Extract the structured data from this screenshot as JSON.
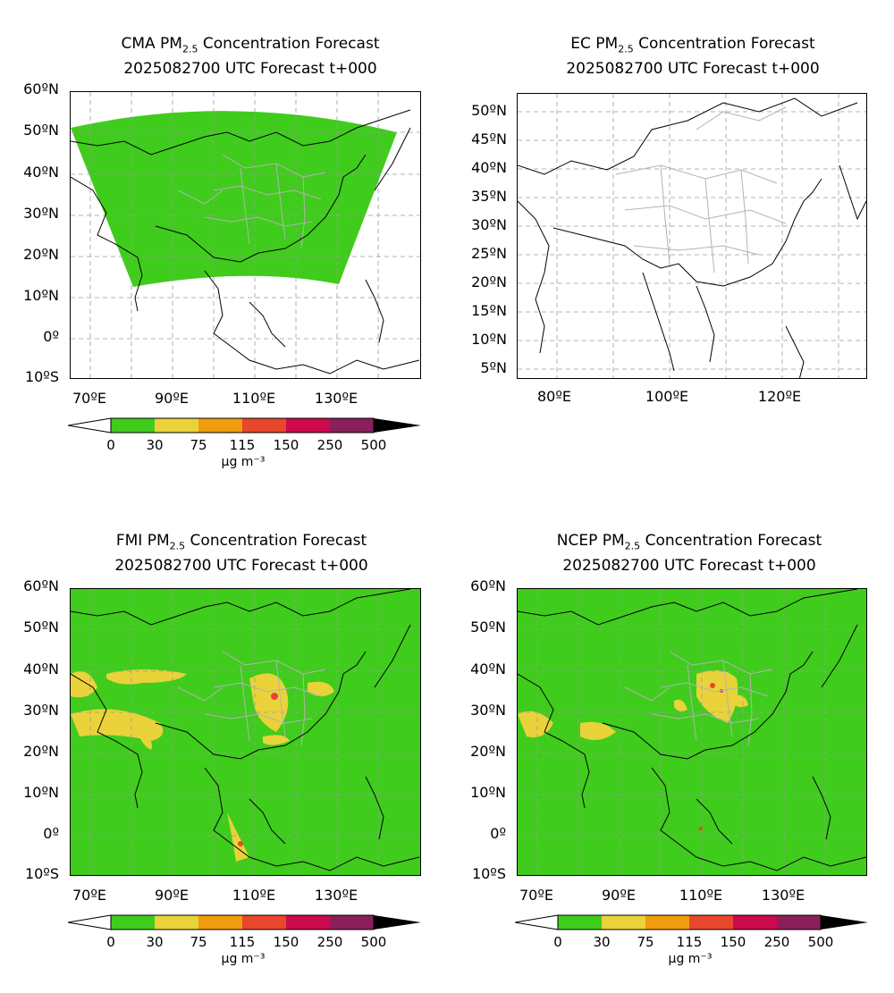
{
  "panels": [
    {
      "key": "cma",
      "model": "CMA",
      "title_prefix": "CMA PM",
      "title_sub": "2.5",
      "title_suffix": " Concentration Forecast",
      "title_line2": "2025082700 UTC Forecast t+000",
      "lat_labels": [
        "60ºN",
        "50ºN",
        "40ºN",
        "30ºN",
        "20ºN",
        "10ºN",
        "0º",
        "10ºS"
      ],
      "lon_labels": [
        "70ºE",
        "90ºE",
        "110ºE",
        "130ºE"
      ],
      "extent": {
        "lon": [
          65,
          150
        ],
        "lat": [
          -10,
          60
        ]
      },
      "field": "partial-fan",
      "has_colorbar": true
    },
    {
      "key": "ec",
      "model": "EC",
      "title_prefix": "EC PM",
      "title_sub": "2.5",
      "title_suffix": " Concentration Forecast",
      "title_line2": "2025082700 UTC Forecast t+000",
      "lat_labels": [
        "50ºN",
        "45ºN",
        "40ºN",
        "35ºN",
        "30ºN",
        "25ºN",
        "20ºN",
        "15ºN",
        "10ºN",
        "5ºN"
      ],
      "lon_labels": [
        "80ºE",
        "100ºE",
        "120ºE"
      ],
      "extent": {
        "lon": [
          73,
          135
        ],
        "lat": [
          3,
          54
        ]
      },
      "field": "none",
      "has_colorbar": false
    },
    {
      "key": "fmi",
      "model": "FMI",
      "title_prefix": "FMI PM",
      "title_sub": "2.5",
      "title_suffix": " Concentration Forecast",
      "title_line2": "2025082700 UTC Forecast t+000",
      "lat_labels": [
        "60ºN",
        "50ºN",
        "40ºN",
        "30ºN",
        "20ºN",
        "10ºN",
        "0º",
        "10ºS"
      ],
      "lon_labels": [
        "70ºE",
        "90ºE",
        "110ºE",
        "130ºE"
      ],
      "extent": {
        "lon": [
          65,
          150
        ],
        "lat": [
          -10,
          60
        ]
      },
      "field": "full",
      "has_colorbar": true
    },
    {
      "key": "ncep",
      "model": "NCEP",
      "title_prefix": "NCEP PM",
      "title_sub": "2.5",
      "title_suffix": " Concentration Forecast",
      "title_line2": "2025082700 UTC Forecast t+000",
      "lat_labels": [
        "60ºN",
        "50ºN",
        "40ºN",
        "30ºN",
        "20ºN",
        "10ºN",
        "0º",
        "10ºS"
      ],
      "lon_labels": [
        "70ºE",
        "90ºE",
        "110ºE",
        "130ºE"
      ],
      "extent": {
        "lon": [
          65,
          150
        ],
        "lat": [
          -10,
          60
        ]
      },
      "field": "full",
      "has_colorbar": true
    }
  ],
  "colorbar": {
    "ticks": [
      "0",
      "30",
      "75",
      "115",
      "150",
      "250",
      "500"
    ],
    "unit": "µg m⁻³",
    "colors": [
      "#3fcc1c",
      "#ead23a",
      "#f19c0f",
      "#e8472b",
      "#cc0a4d",
      "#8a1f5a"
    ],
    "under_color": "#ffffff",
    "over_color": "#000000"
  },
  "colors": {
    "green": "#3fcc1c",
    "yellow": "#ead23a",
    "orange": "#f19c0f",
    "red": "#e8472b",
    "coast": "#000000",
    "provinces": "#b3b3b3",
    "grid": "#999999"
  }
}
